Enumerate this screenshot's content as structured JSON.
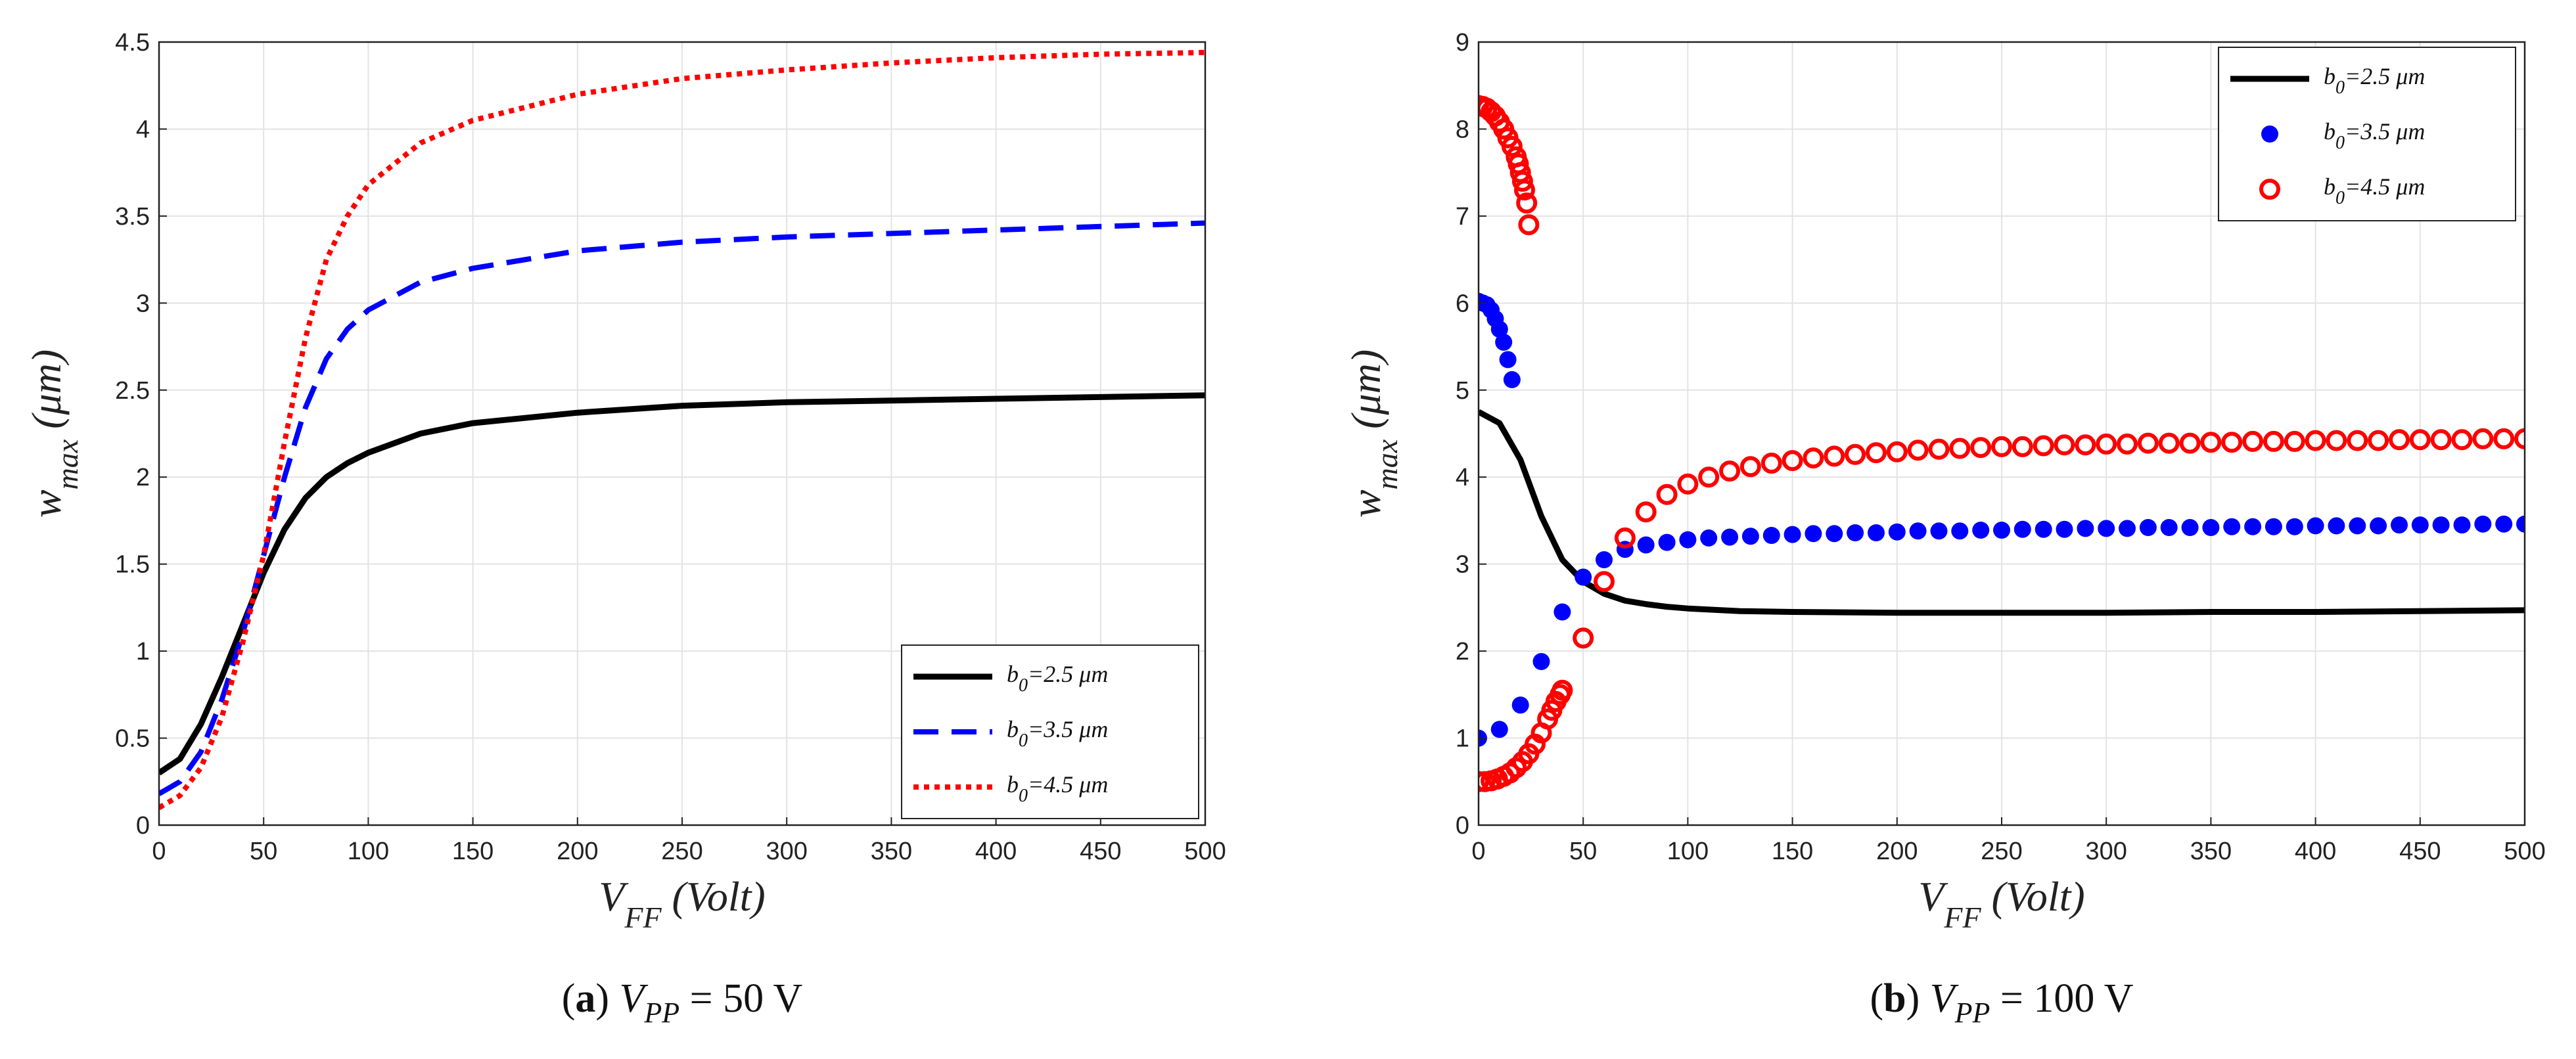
{
  "chart_data": [
    {
      "type": "line",
      "caption": {
        "label": "a",
        "var": "V",
        "sub": "PP",
        "value": "= 50 V"
      },
      "xlabel": {
        "main": "V",
        "sub": "FF",
        "rest": " (Volt)"
      },
      "ylabel": {
        "main": "w",
        "sub": "max",
        "rest": " (μm)"
      },
      "xlim": [
        0,
        500
      ],
      "ylim": [
        0,
        4.5
      ],
      "xticks": [
        0,
        50,
        100,
        150,
        200,
        250,
        300,
        350,
        400,
        450,
        500
      ],
      "yticks": [
        0,
        0.5,
        1,
        1.5,
        2,
        2.5,
        3,
        3.5,
        4,
        4.5
      ],
      "grid": true,
      "legend_position": "bottom-right",
      "series": [
        {
          "name": {
            "main": "b",
            "sub": "0",
            "rest": "=2.5 μm"
          },
          "style": "solid",
          "color": "#000000",
          "x": [
            0,
            10,
            20,
            30,
            40,
            50,
            60,
            70,
            80,
            90,
            100,
            125,
            150,
            200,
            250,
            300,
            350,
            400,
            450,
            500
          ],
          "y": [
            0.3,
            0.38,
            0.58,
            0.85,
            1.15,
            1.45,
            1.7,
            1.88,
            2.0,
            2.08,
            2.14,
            2.25,
            2.31,
            2.37,
            2.41,
            2.43,
            2.44,
            2.45,
            2.46,
            2.47
          ]
        },
        {
          "name": {
            "main": "b",
            "sub": "0",
            "rest": "=3.5 μm"
          },
          "style": "dashed",
          "color": "#0000ff",
          "x": [
            0,
            10,
            20,
            30,
            40,
            50,
            60,
            70,
            80,
            90,
            100,
            125,
            150,
            200,
            250,
            300,
            350,
            400,
            450,
            500
          ],
          "y": [
            0.18,
            0.25,
            0.42,
            0.72,
            1.1,
            1.55,
            2.0,
            2.4,
            2.68,
            2.85,
            2.96,
            3.12,
            3.2,
            3.3,
            3.35,
            3.38,
            3.4,
            3.42,
            3.44,
            3.46
          ]
        },
        {
          "name": {
            "main": "b",
            "sub": "0",
            "rest": "=4.5 μm"
          },
          "style": "dotted",
          "color": "#ff0000",
          "x": [
            0,
            10,
            20,
            30,
            40,
            50,
            60,
            70,
            80,
            90,
            100,
            125,
            150,
            200,
            250,
            300,
            350,
            400,
            450,
            500
          ],
          "y": [
            0.1,
            0.17,
            0.33,
            0.62,
            1.05,
            1.55,
            2.2,
            2.8,
            3.25,
            3.5,
            3.68,
            3.92,
            4.05,
            4.2,
            4.29,
            4.34,
            4.38,
            4.41,
            4.43,
            4.44
          ]
        }
      ]
    },
    {
      "type": "scatter",
      "caption": {
        "label": "b",
        "var": "V",
        "sub": "PP",
        "value": "= 100 V"
      },
      "xlabel": {
        "main": "V",
        "sub": "FF",
        "rest": " (Volt)"
      },
      "ylabel": {
        "main": "w",
        "sub": "max",
        "rest": " (μm)"
      },
      "xlim": [
        0,
        500
      ],
      "ylim": [
        0,
        9
      ],
      "xticks": [
        0,
        50,
        100,
        150,
        200,
        250,
        300,
        350,
        400,
        450,
        500
      ],
      "yticks": [
        0,
        1,
        2,
        3,
        4,
        5,
        6,
        7,
        8,
        9
      ],
      "grid": true,
      "legend_position": "top-right",
      "series": [
        {
          "name": {
            "main": "b",
            "sub": "0",
            "rest": "=2.5 μm"
          },
          "style": "solid",
          "color": "#000000",
          "x": [
            0,
            10,
            20,
            30,
            40,
            50,
            60,
            70,
            80,
            90,
            100,
            125,
            150,
            200,
            250,
            300,
            350,
            400,
            450,
            500
          ],
          "y": [
            4.75,
            4.62,
            4.2,
            3.55,
            3.05,
            2.8,
            2.66,
            2.58,
            2.54,
            2.51,
            2.49,
            2.46,
            2.45,
            2.44,
            2.44,
            2.44,
            2.45,
            2.45,
            2.46,
            2.47
          ]
        },
        {
          "name": {
            "main": "b",
            "sub": "0",
            "rest": "=3.5 μm"
          },
          "style": "filled-circle",
          "color": "#0000ff",
          "x": [
            0,
            2,
            4,
            6,
            8,
            10,
            12,
            14,
            16,
            0,
            10,
            20,
            30,
            40,
            50,
            60,
            70,
            80,
            90,
            100,
            110,
            120,
            130,
            140,
            150,
            160,
            170,
            180,
            190,
            200,
            210,
            220,
            230,
            240,
            250,
            260,
            270,
            280,
            290,
            300,
            310,
            320,
            330,
            340,
            350,
            360,
            370,
            380,
            390,
            400,
            410,
            420,
            430,
            440,
            450,
            460,
            470,
            480,
            490,
            500
          ],
          "y": [
            6.02,
            6.0,
            5.98,
            5.92,
            5.82,
            5.7,
            5.55,
            5.35,
            5.12,
            1.0,
            1.1,
            1.38,
            1.88,
            2.45,
            2.85,
            3.05,
            3.17,
            3.22,
            3.25,
            3.28,
            3.3,
            3.31,
            3.32,
            3.33,
            3.34,
            3.35,
            3.35,
            3.36,
            3.36,
            3.37,
            3.38,
            3.38,
            3.38,
            3.39,
            3.39,
            3.4,
            3.4,
            3.4,
            3.41,
            3.41,
            3.41,
            3.42,
            3.42,
            3.42,
            3.42,
            3.43,
            3.43,
            3.43,
            3.43,
            3.44,
            3.44,
            3.44,
            3.44,
            3.45,
            3.45,
            3.45,
            3.45,
            3.46,
            3.46,
            3.46
          ]
        },
        {
          "name": {
            "main": "b",
            "sub": "0",
            "rest": "=4.5 μm"
          },
          "style": "open-circle",
          "color": "#ff0000",
          "x": [
            0,
            2,
            4,
            6,
            8,
            10,
            12,
            14,
            16,
            18,
            19,
            20,
            21,
            22,
            23,
            24,
            0,
            3,
            6,
            9,
            12,
            15,
            18,
            21,
            24,
            27,
            30,
            33,
            35,
            37,
            39,
            40,
            50,
            60,
            70,
            80,
            90,
            100,
            110,
            120,
            130,
            140,
            150,
            160,
            170,
            180,
            190,
            200,
            210,
            220,
            230,
            240,
            250,
            260,
            270,
            280,
            290,
            300,
            310,
            320,
            330,
            340,
            350,
            360,
            370,
            380,
            390,
            400,
            410,
            420,
            430,
            440,
            450,
            460,
            470,
            480,
            490,
            500
          ],
          "y": [
            8.27,
            8.26,
            8.24,
            8.2,
            8.15,
            8.08,
            8.0,
            7.9,
            7.8,
            7.68,
            7.6,
            7.5,
            7.4,
            7.3,
            7.15,
            6.9,
            0.5,
            0.5,
            0.51,
            0.53,
            0.56,
            0.6,
            0.66,
            0.73,
            0.82,
            0.93,
            1.06,
            1.22,
            1.32,
            1.42,
            1.5,
            1.55,
            2.15,
            2.8,
            3.3,
            3.6,
            3.8,
            3.92,
            4.0,
            4.07,
            4.12,
            4.16,
            4.19,
            4.22,
            4.24,
            4.26,
            4.28,
            4.29,
            4.31,
            4.32,
            4.33,
            4.34,
            4.35,
            4.35,
            4.36,
            4.37,
            4.37,
            4.38,
            4.38,
            4.39,
            4.39,
            4.39,
            4.4,
            4.4,
            4.41,
            4.41,
            4.41,
            4.42,
            4.42,
            4.42,
            4.42,
            4.43,
            4.43,
            4.43,
            4.43,
            4.44,
            4.44,
            4.44
          ]
        }
      ]
    }
  ]
}
